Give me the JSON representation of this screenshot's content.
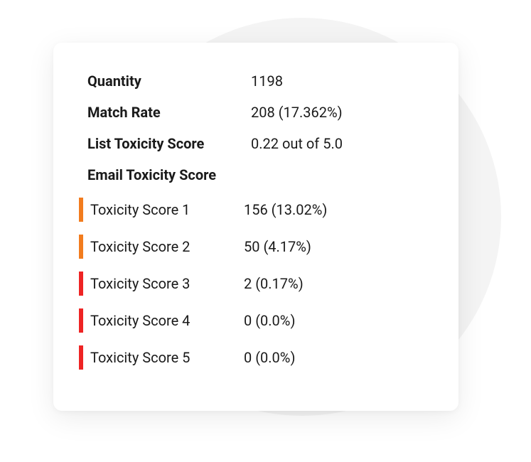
{
  "colors": {
    "bg_circle": "#f4f4f4",
    "card_bg": "#ffffff",
    "text": "#1a1a1a",
    "bar_orange": "#f27c1e",
    "bar_red": "#ee2424"
  },
  "summary": {
    "quantity_label": "Quantity",
    "quantity_value": "1198",
    "match_rate_label": "Match Rate",
    "match_rate_value": "208 (17.362%)",
    "list_toxicity_label": "List Toxicity Score",
    "list_toxicity_value": "0.22 out of 5.0",
    "email_toxicity_header": "Email Toxicity Score"
  },
  "scores": [
    {
      "label": "Toxicity Score 1",
      "value": "156 (13.02%)",
      "color": "#f27c1e"
    },
    {
      "label": "Toxicity Score 2",
      "value": "50 (4.17%)",
      "color": "#f27c1e"
    },
    {
      "label": "Toxicity Score 3",
      "value": "2 (0.17%)",
      "color": "#ee2424"
    },
    {
      "label": "Toxicity Score 4",
      "value": "0 (0.0%)",
      "color": "#ee2424"
    },
    {
      "label": "Toxicity Score 5",
      "value": "0 (0.0%)",
      "color": "#ee2424"
    }
  ]
}
